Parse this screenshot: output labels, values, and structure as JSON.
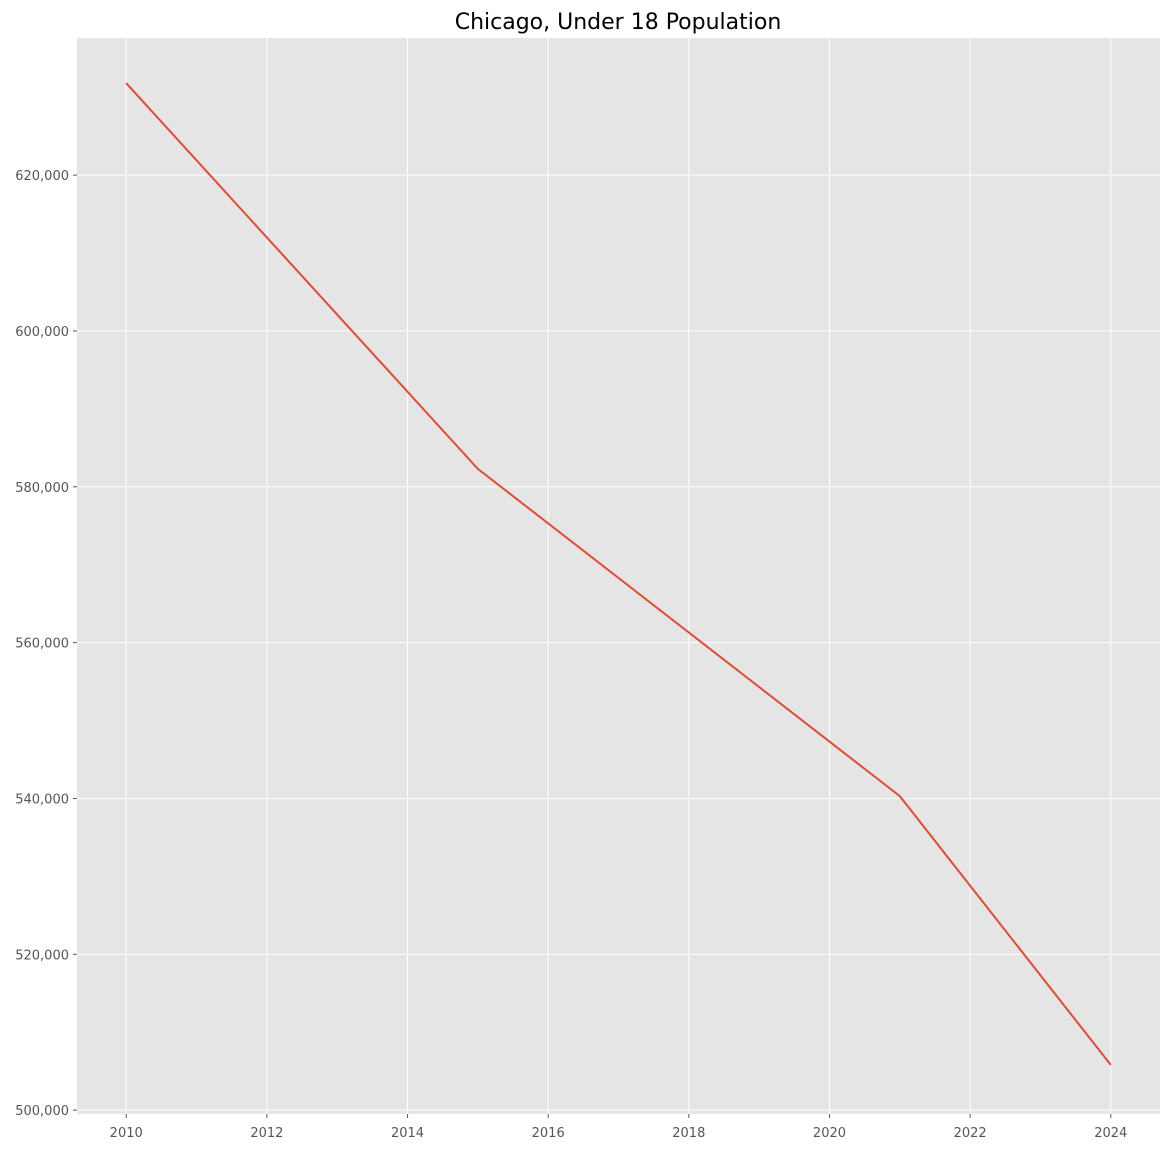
{
  "chart_data": {
    "type": "line",
    "title": "Chicago, Under 18 Population",
    "xlabel": "",
    "ylabel": "",
    "x": [
      2010,
      2015,
      2021,
      2024
    ],
    "series": [
      {
        "values": [
          631800,
          582300,
          540300,
          505800
        ]
      }
    ],
    "xlim": [
      2009.3,
      2024.7
    ],
    "ylim": [
      499500,
      637600
    ],
    "x_ticks": [
      2010,
      2012,
      2014,
      2016,
      2018,
      2020,
      2022,
      2024
    ],
    "x_tick_labels": [
      "2010",
      "2012",
      "2014",
      "2016",
      "2018",
      "2020",
      "2022",
      "2024"
    ],
    "y_ticks": [
      500000,
      520000,
      540000,
      560000,
      580000,
      600000,
      620000
    ],
    "y_tick_labels": [
      "500,000",
      "520,000",
      "540,000",
      "560,000",
      "580,000",
      "600,000",
      "620,000"
    ],
    "grid": true,
    "legend": "none",
    "colors": {
      "line": "#e24a33",
      "plot_background": "#e5e5e5",
      "grid": "#ffffff"
    }
  }
}
